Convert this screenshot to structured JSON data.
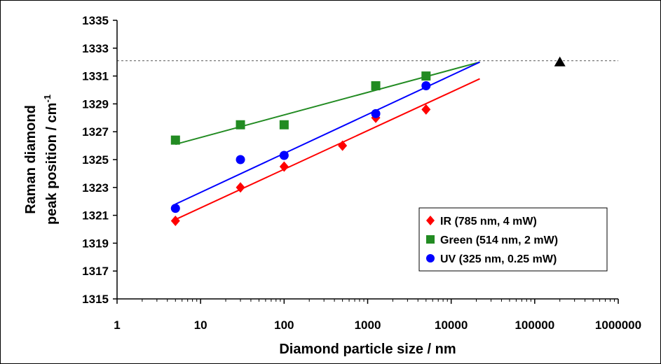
{
  "chart_data": {
    "type": "scatter",
    "xscale": "log",
    "xlim": [
      1,
      1000000
    ],
    "ylim": [
      1315,
      1335
    ],
    "grid": false,
    "legend_position": "bottom-right",
    "xlabel": "Diamond particle size / nm",
    "ylabel_line1": "Raman diamond",
    "ylabel_line2": "peak position / cm",
    "ylabel_superscript": "-1",
    "x_ticks": [
      1,
      10,
      100,
      1000,
      10000,
      100000,
      1000000
    ],
    "x_tick_labels": [
      "1",
      "10",
      "100",
      "1000",
      "10000",
      "100000",
      "1000000"
    ],
    "y_ticks": [
      1315,
      1317,
      1319,
      1321,
      1323,
      1325,
      1327,
      1329,
      1331,
      1333,
      1335
    ],
    "y_tick_labels": [
      "1315",
      "1317",
      "1319",
      "1321",
      "1323",
      "1325",
      "1327",
      "1329",
      "1331",
      "1333",
      "1335"
    ],
    "series": [
      {
        "name": "IR (785 nm, 4 mW)",
        "marker": "diamond",
        "color": "#ff0000",
        "points": [
          [
            5,
            1320.6
          ],
          [
            30,
            1323.0
          ],
          [
            100,
            1324.5
          ],
          [
            500,
            1326.0
          ],
          [
            1250,
            1328.0
          ],
          [
            5000,
            1328.6
          ]
        ],
        "fit": [
          [
            5,
            1320.7
          ],
          [
            22000,
            1330.8
          ]
        ]
      },
      {
        "name": "Green (514 nm, 2 mW)",
        "marker": "square",
        "color": "#228b22",
        "points": [
          [
            5,
            1326.4
          ],
          [
            30,
            1327.5
          ],
          [
            100,
            1327.5
          ],
          [
            1250,
            1330.3
          ],
          [
            5000,
            1331.0
          ]
        ],
        "fit": [
          [
            5,
            1326.1
          ],
          [
            22000,
            1332.0
          ]
        ]
      },
      {
        "name": "UV (325 nm, 0.25 mW)",
        "marker": "circle",
        "color": "#0000ff",
        "points": [
          [
            5,
            1321.5
          ],
          [
            30,
            1325.0
          ],
          [
            100,
            1325.3
          ],
          [
            1250,
            1328.3
          ],
          [
            5000,
            1330.3
          ]
        ],
        "fit": [
          [
            5,
            1321.8
          ],
          [
            22000,
            1332.0
          ]
        ]
      }
    ],
    "reference_point": {
      "x": 200000,
      "y": 1332,
      "marker": "triangle",
      "color": "#000000"
    },
    "reference_line": {
      "y": 1332.1,
      "style": "dashed",
      "color": "#555555"
    }
  }
}
